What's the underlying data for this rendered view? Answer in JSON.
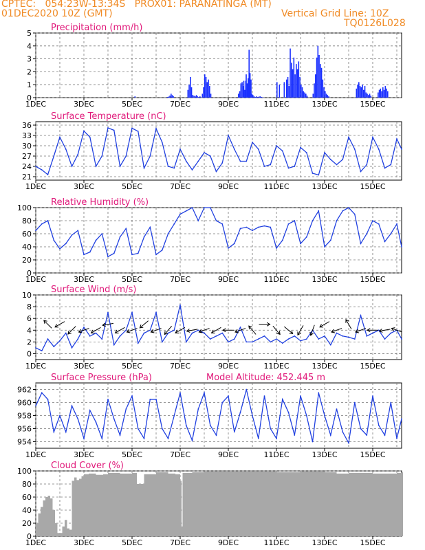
{
  "header": {
    "line1_left": "CPTEC:   054:23W-13:34S   PROX01: PARANATINGA (MT)",
    "line2_left": "01DEC2020 10Z (GMT)",
    "line2_right": "Vertical Grid Line: 10Z",
    "line3_right": "TQ0126L028",
    "model_altitude": "Model Altitude: 452.445 m"
  },
  "colors": {
    "header": "#f08a24",
    "title": "#e0197a",
    "series": "#2040e0",
    "bars": "#1a30ff",
    "cloud": "#a8a8a8"
  },
  "x_tick_labels": [
    "1DEC",
    "3DEC",
    "5DEC",
    "7DEC",
    "9DEC",
    "11DEC",
    "13DEC",
    "15DEC"
  ],
  "x_tick_days": [
    0,
    2,
    4,
    6,
    8,
    10,
    12,
    14
  ],
  "x_range_days": [
    0,
    15.2
  ],
  "chart_data": [
    {
      "type": "bar",
      "title": "Precipitation (mm/h)",
      "ylim": [
        0,
        5
      ],
      "yticks": [
        0,
        1,
        2,
        3,
        4,
        5
      ],
      "x": [
        4.1,
        5.45,
        5.5,
        5.55,
        5.6,
        5.65,
        5.7,
        6.3,
        6.35,
        6.4,
        6.45,
        6.5,
        6.55,
        6.6,
        6.65,
        6.7,
        6.75,
        6.8,
        6.9,
        6.95,
        7.0,
        7.05,
        7.1,
        7.15,
        7.2,
        7.25,
        8.4,
        8.45,
        8.5,
        8.55,
        8.6,
        8.62,
        8.66,
        8.7,
        8.72,
        8.76,
        8.8,
        8.84,
        8.88,
        8.92,
        8.96,
        9.0,
        9.05,
        9.1,
        9.15,
        9.2,
        9.25,
        9.3,
        9.35,
        9.4,
        10.0,
        10.1,
        10.3,
        10.4,
        10.45,
        10.5,
        10.55,
        10.6,
        10.65,
        10.7,
        10.75,
        10.8,
        10.85,
        10.9,
        10.95,
        11.0,
        11.05,
        11.1,
        11.15,
        11.2,
        11.25,
        11.5,
        11.55,
        11.6,
        11.65,
        11.7,
        11.75,
        11.8,
        11.85,
        11.9,
        11.95,
        12.0,
        12.05,
        12.1,
        12.15,
        13.3,
        13.35,
        13.4,
        13.45,
        13.5,
        13.55,
        13.6,
        13.65,
        13.7,
        13.75,
        13.8,
        13.85,
        13.9,
        14.2,
        14.25,
        14.3,
        14.35,
        14.4,
        14.45,
        14.5,
        14.55,
        14.6
      ],
      "values": [
        0.1,
        0.05,
        0.08,
        0.15,
        0.3,
        0.2,
        0.1,
        0.6,
        1.0,
        1.6,
        0.8,
        0.2,
        0.15,
        0.1,
        0.2,
        0.1,
        0.05,
        0.1,
        0.3,
        0.8,
        1.8,
        1.6,
        1.2,
        1.4,
        0.9,
        0.3,
        0.3,
        0.5,
        1.1,
        1.2,
        0.9,
        1.3,
        0.6,
        1.3,
        1.8,
        1.1,
        1.5,
        3.7,
        1.9,
        1.4,
        0.3,
        0.2,
        0.1,
        0.05,
        0.1,
        0.05,
        0.08,
        0.1,
        0.05,
        0.03,
        1.2,
        1.0,
        1.2,
        1.4,
        1.6,
        0.9,
        3.8,
        2.7,
        2.2,
        3.1,
        1.8,
        2.6,
        2.2,
        2.8,
        1.6,
        1.0,
        0.8,
        0.5,
        0.4,
        0.3,
        0.15,
        0.3,
        1.1,
        1.8,
        3.1,
        4.0,
        3.3,
        2.6,
        2.3,
        1.4,
        0.8,
        0.5,
        0.3,
        0.2,
        0.1,
        0.7,
        1.0,
        1.2,
        0.9,
        0.8,
        1.0,
        0.6,
        0.9,
        0.4,
        0.3,
        0.2,
        0.3,
        0.15,
        0.4,
        0.6,
        0.7,
        0.5,
        0.8,
        0.6,
        0.9,
        0.7,
        0.5
      ]
    },
    {
      "type": "line",
      "title": "Surface Temperature (nC)",
      "ylim": [
        20,
        37
      ],
      "yticks": [
        21,
        24,
        27,
        30,
        33,
        36
      ],
      "x": [
        0,
        0.25,
        0.5,
        0.75,
        1.0,
        1.25,
        1.5,
        1.75,
        2.0,
        2.25,
        2.5,
        2.75,
        3.0,
        3.25,
        3.5,
        3.75,
        4.0,
        4.25,
        4.5,
        4.75,
        5.0,
        5.25,
        5.5,
        5.75,
        6.0,
        6.25,
        6.5,
        6.75,
        7.0,
        7.25,
        7.5,
        7.75,
        8.0,
        8.25,
        8.5,
        8.75,
        9.0,
        9.25,
        9.5,
        9.75,
        10.0,
        10.25,
        10.5,
        10.75,
        11.0,
        11.25,
        11.5,
        11.75,
        12.0,
        12.25,
        12.5,
        12.75,
        13.0,
        13.25,
        13.5,
        13.75,
        14.0,
        14.25,
        14.5,
        14.75,
        15.0,
        15.2
      ],
      "values": [
        24,
        23,
        21.6,
        27,
        32.5,
        29,
        24,
        27.5,
        34.3,
        32.5,
        24,
        27,
        35.2,
        34.5,
        24,
        27,
        35.1,
        34.2,
        23.5,
        27,
        35,
        31,
        24,
        23.5,
        29,
        25.5,
        23,
        25.5,
        28,
        27,
        22.5,
        25,
        33,
        29,
        25.5,
        25.5,
        31,
        29,
        24,
        24.5,
        30,
        28.5,
        23.5,
        24,
        29.5,
        28,
        22,
        21.5,
        28,
        26,
        24.5,
        26,
        32.5,
        29,
        22.5,
        24.5,
        32.5,
        29,
        23.5,
        24.5,
        32,
        29
      ]
    },
    {
      "type": "line",
      "title": "Relative Humidity (%)",
      "ylim": [
        0,
        100
      ],
      "yticks": [
        0,
        20,
        40,
        60,
        80,
        100
      ],
      "x": [
        0,
        0.25,
        0.5,
        0.75,
        1.0,
        1.25,
        1.5,
        1.75,
        2.0,
        2.25,
        2.5,
        2.75,
        3.0,
        3.25,
        3.5,
        3.75,
        4.0,
        4.25,
        4.5,
        4.75,
        5.0,
        5.25,
        5.5,
        5.75,
        6.0,
        6.25,
        6.5,
        6.75,
        7.0,
        7.25,
        7.5,
        7.75,
        8.0,
        8.25,
        8.5,
        8.75,
        9.0,
        9.25,
        9.5,
        9.75,
        10.0,
        10.25,
        10.5,
        10.75,
        11.0,
        11.25,
        11.5,
        11.75,
        12.0,
        12.25,
        12.5,
        12.75,
        13.0,
        13.25,
        13.5,
        13.75,
        14.0,
        14.25,
        14.5,
        14.75,
        15.0,
        15.2
      ],
      "values": [
        65,
        75,
        80,
        50,
        37,
        45,
        58,
        65,
        28,
        32,
        50,
        60,
        25,
        30,
        55,
        68,
        28,
        30,
        55,
        70,
        28,
        35,
        60,
        75,
        90,
        95,
        100,
        80,
        100,
        100,
        80,
        75,
        38,
        45,
        68,
        70,
        65,
        70,
        72,
        70,
        38,
        50,
        75,
        80,
        45,
        55,
        80,
        95,
        40,
        50,
        80,
        95,
        100,
        90,
        45,
        60,
        80,
        75,
        48,
        60,
        75,
        40
      ]
    },
    {
      "type": "line",
      "title": "Surface Wind (m/s)",
      "ylim": [
        -1,
        10
      ],
      "yticks": [
        0,
        2,
        4,
        6,
        8,
        10
      ],
      "x": [
        0,
        0.25,
        0.5,
        0.75,
        1.0,
        1.25,
        1.5,
        1.75,
        2.0,
        2.25,
        2.5,
        2.75,
        3.0,
        3.25,
        3.5,
        3.75,
        4.0,
        4.25,
        4.5,
        4.75,
        5.0,
        5.25,
        5.5,
        5.75,
        6.0,
        6.25,
        6.5,
        6.75,
        7.0,
        7.25,
        7.5,
        7.75,
        8.0,
        8.25,
        8.5,
        8.75,
        9.0,
        9.25,
        9.5,
        9.75,
        10.0,
        10.25,
        10.5,
        10.75,
        11.0,
        11.25,
        11.5,
        11.75,
        12.0,
        12.25,
        12.5,
        12.75,
        13.0,
        13.25,
        13.5,
        13.75,
        14.0,
        14.25,
        14.5,
        14.75,
        15.0,
        15.2
      ],
      "values": [
        1,
        0.5,
        2.5,
        1.2,
        2.2,
        3.5,
        1,
        2.5,
        4.5,
        3,
        3.5,
        2.5,
        7,
        1.5,
        3,
        4,
        7,
        1.8,
        3.5,
        4,
        7,
        2,
        3.5,
        4,
        8.3,
        2,
        3.5,
        4,
        3.5,
        2.5,
        3,
        3.5,
        2,
        2.5,
        4.5,
        2,
        2,
        2.5,
        3,
        2,
        2.5,
        1.8,
        2.5,
        3,
        2.2,
        2.5,
        4,
        2.5,
        3,
        1.5,
        3.5,
        3,
        2.8,
        2.5,
        6.5,
        3,
        3.5,
        4,
        2.5,
        3.5,
        4,
        2.5
      ]
    },
    {
      "type": "line",
      "title": "Surface Pressure (hPa)",
      "ylim": [
        953,
        963
      ],
      "yticks": [
        954,
        956,
        958,
        960,
        962
      ],
      "x": [
        0,
        0.25,
        0.5,
        0.75,
        1.0,
        1.25,
        1.5,
        1.75,
        2.0,
        2.25,
        2.5,
        2.75,
        3.0,
        3.25,
        3.5,
        3.75,
        4.0,
        4.25,
        4.5,
        4.75,
        5.0,
        5.25,
        5.5,
        5.75,
        6.0,
        6.25,
        6.5,
        6.75,
        7.0,
        7.25,
        7.5,
        7.75,
        8.0,
        8.25,
        8.5,
        8.75,
        9.0,
        9.25,
        9.5,
        9.75,
        10.0,
        10.25,
        10.5,
        10.75,
        11.0,
        11.25,
        11.5,
        11.75,
        12.0,
        12.25,
        12.5,
        12.75,
        13.0,
        13.25,
        13.5,
        13.75,
        14.0,
        14.25,
        14.5,
        14.75,
        15.0,
        15.2
      ],
      "values": [
        959.5,
        961.5,
        960.5,
        955.5,
        958,
        955.5,
        959.5,
        957.5,
        954.5,
        958.8,
        957,
        954.5,
        960.5,
        957.5,
        955,
        959,
        961,
        956,
        954.5,
        960.5,
        960.5,
        956,
        954.5,
        958,
        961.5,
        956.5,
        954.2,
        959,
        961.5,
        956.5,
        955,
        960,
        961,
        955.5,
        958.5,
        962,
        958,
        954.5,
        961,
        956,
        954.5,
        960.5,
        958.5,
        955,
        961,
        958,
        954,
        961.5,
        958,
        955,
        959,
        955.5,
        953.8,
        960,
        956,
        955,
        961,
        956.5,
        955,
        960,
        954.5,
        957.5
      ]
    },
    {
      "type": "bar",
      "title": "Cloud Cover (%)",
      "ylim": [
        0,
        100
      ],
      "yticks": [
        0,
        20,
        40,
        60,
        80,
        100
      ],
      "x": [
        0,
        0.1,
        0.2,
        0.3,
        0.4,
        0.5,
        0.6,
        0.7,
        0.8,
        0.9,
        1.0,
        1.1,
        1.2,
        1.3,
        1.4,
        1.5,
        1.6,
        1.7,
        1.8,
        1.9,
        2.0,
        2.2,
        2.5,
        2.8,
        3.0,
        3.5,
        4.0,
        4.2,
        4.5,
        5.0,
        5.5,
        5.8,
        6.0,
        6.05,
        6.1,
        6.5,
        7.0,
        8.0,
        9.0,
        10.0,
        11.0,
        12.0,
        12.5,
        13.0,
        14.0,
        15.0,
        15.2
      ],
      "values": [
        20,
        35,
        45,
        55,
        60,
        62,
        58,
        40,
        20,
        5,
        5,
        15,
        25,
        12,
        10,
        85,
        90,
        86,
        88,
        92,
        95,
        96,
        94,
        95,
        97,
        96,
        97,
        80,
        95,
        98,
        96,
        95,
        85,
        15,
        97,
        98,
        99,
        99,
        99,
        98,
        99,
        98,
        96,
        97,
        96,
        97,
        98
      ]
    }
  ],
  "wind_arrows": {
    "x": [
      0.5,
      1.0,
      1.5,
      2.0,
      2.5,
      3.0,
      3.5,
      4.0,
      4.5,
      5.0,
      5.5,
      6.0,
      6.5,
      7.0,
      7.5,
      8.0,
      8.5,
      9.0,
      9.5,
      10.0,
      10.5,
      11.0,
      11.5,
      12.0,
      12.5,
      13.0,
      13.5,
      14.0,
      14.5,
      15.0
    ],
    "y": [
      5,
      5,
      4,
      4,
      4,
      5,
      4,
      4,
      5,
      4,
      4,
      4,
      4,
      4,
      4,
      4,
      4,
      4,
      5,
      4,
      4,
      4,
      4,
      5,
      4,
      5,
      4,
      4,
      4,
      4
    ],
    "angle_deg": [
      135,
      210,
      225,
      200,
      210,
      190,
      210,
      200,
      220,
      200,
      230,
      210,
      190,
      200,
      210,
      180,
      200,
      130,
      0,
      310,
      320,
      240,
      250,
      210,
      200,
      120,
      200,
      180,
      190,
      160
    ]
  }
}
